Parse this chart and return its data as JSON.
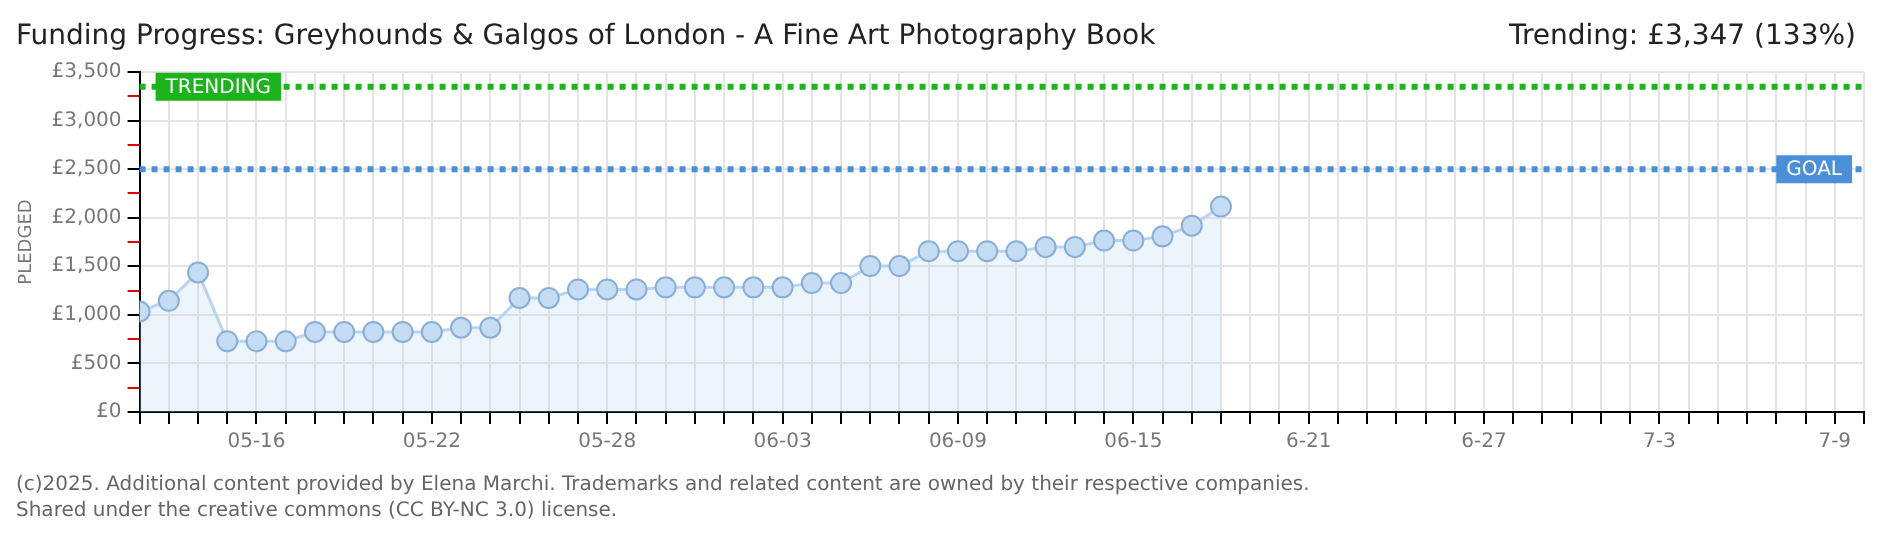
{
  "chart_data": {
    "type": "area",
    "title": "Funding Progress: Greyhounds & Galgos of London - A Fine Art Photography Book",
    "subtitle": "Trending: £3,347 (133%)",
    "ylabel": "PLEDGED",
    "annotations": [
      "(c)2025. Additional content provided by Elena Marchi. Trademarks and related content are owned by their respective companies.",
      "Shared under the creative commons (CC BY-NC 3.0) license."
    ],
    "x": [
      "--05-12",
      "--05-13",
      "--05-14",
      "--05-15",
      "--05-16",
      "--05-17",
      "--05-18",
      "--05-19",
      "--05-20",
      "--05-21",
      "--05-22",
      "--05-23",
      "--05-24",
      "--05-25",
      "--05-26",
      "--05-27",
      "--05-28",
      "--05-29",
      "--05-30",
      "--05-31",
      "--06-01",
      "--06-02",
      "--06-03",
      "--06-04",
      "--06-05",
      "--06-06",
      "--06-07",
      "--06-08",
      "--06-09",
      "--06-10",
      "--06-11",
      "--06-12",
      "--06-13",
      "--06-14",
      "--06-15",
      "--06-16",
      "--06-17",
      "--06-18"
    ],
    "series": [
      {
        "color": "#b8d4f2",
        "values": [
          1035,
          1145,
          1437,
          729,
          729,
          729,
          824,
          824,
          824,
          824,
          824,
          868,
          868,
          1174,
          1174,
          1262,
          1262,
          1262,
          1283,
          1283,
          1283,
          1283,
          1283,
          1327,
          1327,
          1502,
          1502,
          1655,
          1655,
          1655,
          1655,
          1699,
          1699,
          1765,
          1765,
          1808,
          1918,
          2115
        ]
      }
    ],
    "xlim": [
      "--05-12",
      "--07-10"
    ],
    "xticks": [
      {
        "value": "--05-12",
        "label": null
      },
      {
        "value": "--05-13",
        "label": null
      },
      {
        "value": "--05-14",
        "label": null
      },
      {
        "value": "--05-15",
        "label": null
      },
      {
        "value": "--05-16",
        "label": "05-16"
      },
      {
        "value": "--05-17",
        "label": null
      },
      {
        "value": "--05-18",
        "label": null
      },
      {
        "value": "--05-19",
        "label": null
      },
      {
        "value": "--05-20",
        "label": null
      },
      {
        "value": "--05-21",
        "label": null
      },
      {
        "value": "--05-22",
        "label": "05-22"
      },
      {
        "value": "--05-23",
        "label": null
      },
      {
        "value": "--05-24",
        "label": null
      },
      {
        "value": "--05-25",
        "label": null
      },
      {
        "value": "--05-26",
        "label": null
      },
      {
        "value": "--05-27",
        "label": null
      },
      {
        "value": "--05-28",
        "label": "05-28"
      },
      {
        "value": "--05-29",
        "label": null
      },
      {
        "value": "--05-30",
        "label": null
      },
      {
        "value": "--05-31",
        "label": null
      },
      {
        "value": "--06-01",
        "label": null
      },
      {
        "value": "--06-02",
        "label": null
      },
      {
        "value": "--06-03",
        "label": "06-03"
      },
      {
        "value": "--06-04",
        "label": null
      },
      {
        "value": "--06-05",
        "label": null
      },
      {
        "value": "--06-06",
        "label": null
      },
      {
        "value": "--06-07",
        "label": null
      },
      {
        "value": "--06-08",
        "label": null
      },
      {
        "value": "--06-09",
        "label": "06-09"
      },
      {
        "value": "--06-10",
        "label": null
      },
      {
        "value": "--06-11",
        "label": null
      },
      {
        "value": "--06-12",
        "label": null
      },
      {
        "value": "--06-13",
        "label": null
      },
      {
        "value": "--06-14",
        "label": null
      },
      {
        "value": "--06-15",
        "label": "06-15"
      },
      {
        "value": "--06-16",
        "label": null
      },
      {
        "value": "--06-17",
        "label": null
      },
      {
        "value": "--06-18",
        "label": null
      },
      {
        "value": "--06-19",
        "label": null
      },
      {
        "value": "--06-20",
        "label": null
      },
      {
        "value": "--06-21",
        "label": "6-21"
      },
      {
        "value": "--06-22",
        "label": null
      },
      {
        "value": "--06-23",
        "label": null
      },
      {
        "value": "--06-24",
        "label": null
      },
      {
        "value": "--06-25",
        "label": null
      },
      {
        "value": "--06-26",
        "label": null
      },
      {
        "value": "--06-27",
        "label": "6-27"
      },
      {
        "value": "--06-28",
        "label": null
      },
      {
        "value": "--06-29",
        "label": null
      },
      {
        "value": "--06-30",
        "label": null
      },
      {
        "value": "--07-01",
        "label": null
      },
      {
        "value": "--07-02",
        "label": null
      },
      {
        "value": "--07-03",
        "label": "7-3"
      },
      {
        "value": "--07-04",
        "label": null
      },
      {
        "value": "--07-05",
        "label": null
      },
      {
        "value": "--07-06",
        "label": null
      },
      {
        "value": "--07-07",
        "label": null
      },
      {
        "value": "--07-08",
        "label": null
      },
      {
        "value": "--07-09",
        "label": "7-9"
      },
      {
        "value": "--07-10",
        "label": null
      }
    ],
    "ylim": [
      0,
      3500
    ],
    "yticks": [
      {
        "value": 0,
        "label": "£0"
      },
      {
        "value": 250,
        "label": null
      },
      {
        "value": 500,
        "label": "£500"
      },
      {
        "value": 750,
        "label": null
      },
      {
        "value": 1000,
        "label": "£1,000"
      },
      {
        "value": 1250,
        "label": null
      },
      {
        "value": 1500,
        "label": "£1,500"
      },
      {
        "value": 1750,
        "label": null
      },
      {
        "value": 2000,
        "label": "£2,000"
      },
      {
        "value": 2250,
        "label": null
      },
      {
        "value": 2500,
        "label": "£2,500"
      },
      {
        "value": 2750,
        "label": null
      },
      {
        "value": 3000,
        "label": "£3,000"
      },
      {
        "value": 3250,
        "label": null
      },
      {
        "value": 3500,
        "label": "£3,500"
      }
    ],
    "ref_lines": [
      {
        "axis": "y",
        "value": 2500,
        "label": "GOAL",
        "color": "#4a8fd8",
        "line_style": "dotted"
      },
      {
        "axis": "y",
        "value": 3347,
        "label": "TRENDING",
        "color": "#1db31d",
        "line_style": "dotted"
      }
    ],
    "grid": true,
    "marker": "circle"
  }
}
